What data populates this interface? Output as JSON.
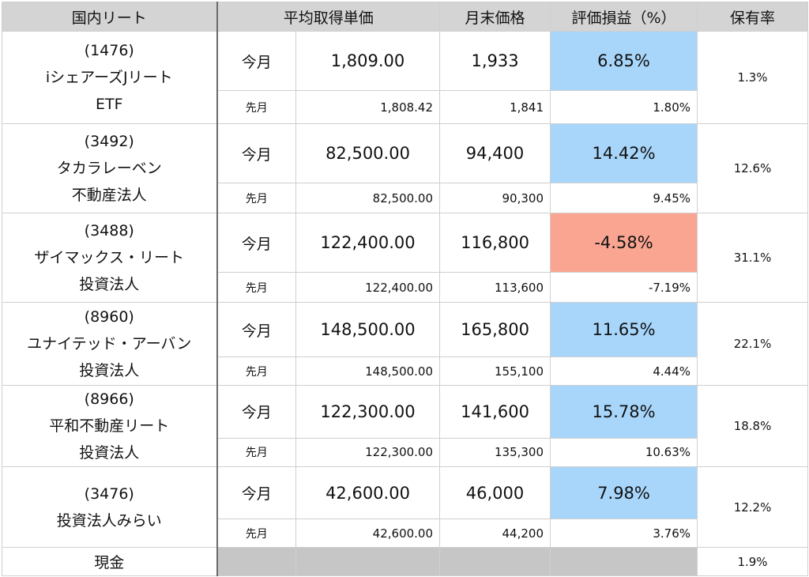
{
  "headers": {
    "name": "国内リート",
    "avg_price": "平均取得単価",
    "month_end_price": "月末価格",
    "gain_loss": "評価損益（%）",
    "ratio": "保有率"
  },
  "labels": {
    "current": "今月",
    "previous": "先月"
  },
  "rows": [
    {
      "name_lines": [
        "(1476)",
        "iシェアーズJリート",
        "ETF"
      ],
      "current": {
        "avg": "1,809.00",
        "price": "1,933",
        "pct": "6.85%"
      },
      "previous": {
        "avg": "1,808.42",
        "price": "1,841",
        "pct": "1.80%"
      },
      "ratio": "1.3%"
    },
    {
      "name_lines": [
        "(3492)",
        "タカラレーベン",
        "不動産法人"
      ],
      "current": {
        "avg": "82,500.00",
        "price": "94,400",
        "pct": "14.42%"
      },
      "previous": {
        "avg": "82,500.00",
        "price": "90,300",
        "pct": "9.45%"
      },
      "ratio": "12.6%"
    },
    {
      "name_lines": [
        "(3488)",
        "ザイマックス・リート",
        "投資法人"
      ],
      "current": {
        "avg": "122,400.00",
        "price": "116,800",
        "pct": "-4.58%"
      },
      "previous": {
        "avg": "122,400.00",
        "price": "113,600",
        "pct": "-7.19%"
      },
      "ratio": "31.1%"
    },
    {
      "name_lines": [
        "(8960)",
        "ユナイテッド・アーバン",
        "投資法人"
      ],
      "current": {
        "avg": "148,500.00",
        "price": "165,800",
        "pct": "11.65%"
      },
      "previous": {
        "avg": "148,500.00",
        "price": "155,100",
        "pct": "4.44%"
      },
      "ratio": "22.1%"
    },
    {
      "name_lines": [
        "(8966)",
        "平和不動産リート",
        "投資法人"
      ],
      "current": {
        "avg": "122,300.00",
        "price": "141,600",
        "pct": "15.78%"
      },
      "previous": {
        "avg": "122,300.00",
        "price": "135,300",
        "pct": "10.63%"
      },
      "ratio": "18.8%"
    },
    {
      "name_lines": [
        "(3476)",
        "投資法人みらい"
      ],
      "current": {
        "avg": "42,600.00",
        "price": "46,000",
        "pct": "7.98%"
      },
      "previous": {
        "avg": "42,600.00",
        "price": "44,200",
        "pct": "3.76%"
      },
      "ratio": "12.2%"
    }
  ],
  "cash": {
    "label": "現金",
    "ratio": "1.9%"
  },
  "colors": {
    "header_bg": "#d4d4d4",
    "positive": "#a8d6fb",
    "negative": "#f9a592",
    "cash_fill": "#c6c6c6"
  }
}
